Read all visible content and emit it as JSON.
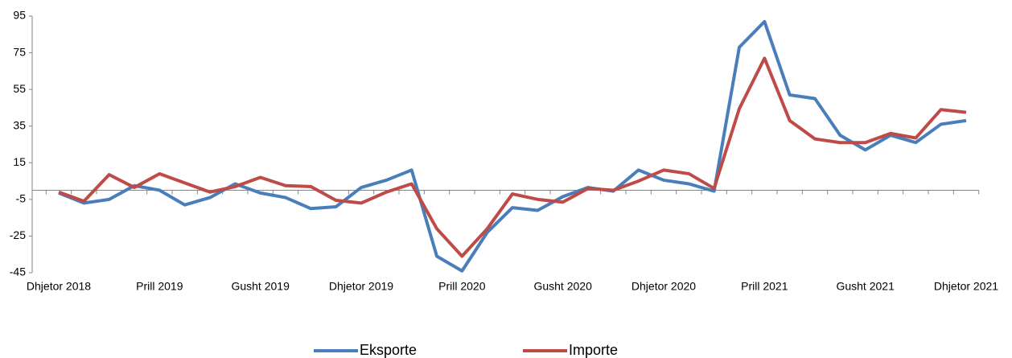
{
  "chart_data": {
    "type": "line",
    "categories": [
      "Dhjetor 2018",
      null,
      null,
      null,
      "Prill 2019",
      null,
      null,
      null,
      "Gusht 2019",
      null,
      null,
      null,
      "Dhjetor 2019",
      null,
      null,
      null,
      "Prill 2020",
      null,
      null,
      null,
      "Gusht 2020",
      null,
      null,
      null,
      "Dhjetor 2020",
      null,
      null,
      null,
      "Prill 2021",
      null,
      null,
      null,
      "Gusht 2021",
      null,
      null,
      null,
      "Dhjetor 2021"
    ],
    "series": [
      {
        "name": "Eksporte",
        "color": "#4a7ebb",
        "values": [
          -1.5,
          -7,
          -5,
          2.5,
          0,
          -8,
          -4,
          3.5,
          -1.5,
          -4,
          -10,
          -9,
          1.5,
          5.5,
          11,
          -36,
          -44,
          -23,
          -9.5,
          -11,
          -3.5,
          1.5,
          -0.5,
          11,
          5.5,
          3.5,
          -0.5,
          78,
          92,
          52,
          50,
          30,
          22,
          30,
          26,
          36,
          38
        ]
      },
      {
        "name": "Importe",
        "color": "#be4b48",
        "values": [
          -1,
          -6,
          8.5,
          1.5,
          9,
          4,
          -1,
          2,
          7,
          2.5,
          2,
          -5.5,
          -7,
          -1,
          3.5,
          -21,
          -36,
          -21,
          -2,
          -5,
          -6.5,
          1,
          0,
          5,
          11,
          9,
          1,
          44.5,
          72,
          38,
          28,
          26,
          26,
          31,
          28.5,
          44,
          42.5
        ]
      }
    ],
    "ylim": [
      -45,
      95
    ],
    "yticks": [
      -45,
      -25,
      -5,
      15,
      35,
      55,
      75,
      95
    ],
    "legend": "bottom"
  }
}
